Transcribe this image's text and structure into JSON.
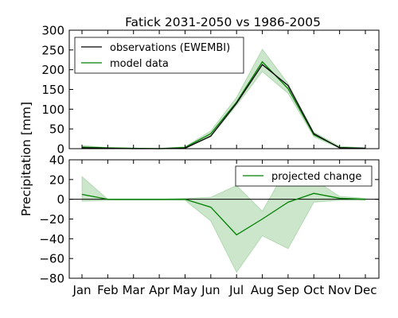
{
  "chart_data": [
    {
      "type": "line",
      "title": "Fatick 2031-2050 vs 1986-2005",
      "categories": [
        "Jan",
        "Feb",
        "Mar",
        "Apr",
        "May",
        "Jun",
        "Jul",
        "Aug",
        "Sep",
        "Oct",
        "Nov",
        "Dec"
      ],
      "ylim": [
        0,
        300
      ],
      "yticks": [
        0,
        50,
        100,
        150,
        200,
        250,
        300
      ],
      "legend_position": "top-left",
      "series": [
        {
          "name": "observations (EWEMBI)",
          "color": "#000000",
          "values": [
            2,
            1,
            0,
            0,
            1,
            32,
            115,
            213,
            160,
            38,
            2,
            1
          ]
        },
        {
          "name": "model data",
          "color": "#008000",
          "values": [
            4,
            2,
            1,
            0,
            3,
            38,
            118,
            220,
            152,
            35,
            3,
            1
          ],
          "band_low": [
            1,
            1,
            0,
            0,
            1,
            30,
            110,
            195,
            140,
            30,
            1,
            0
          ],
          "band_high": [
            8,
            3,
            1,
            1,
            5,
            45,
            130,
            252,
            165,
            42,
            6,
            2
          ]
        }
      ]
    },
    {
      "type": "line",
      "categories": [
        "Jan",
        "Feb",
        "Mar",
        "Apr",
        "May",
        "Jun",
        "Jul",
        "Aug",
        "Sep",
        "Oct",
        "Nov",
        "Dec"
      ],
      "ylim": [
        -80,
        40
      ],
      "yticks": [
        -80,
        -60,
        -40,
        -20,
        0,
        20,
        40
      ],
      "ylabel_shared": "Precipitation [mm]",
      "legend_position": "top-right",
      "zero_line": true,
      "series": [
        {
          "name": "projected change",
          "color": "#008000",
          "values": [
            5,
            0,
            0,
            0,
            0,
            -8,
            -36,
            -20,
            -3,
            6,
            1,
            0
          ],
          "band_low": [
            -2,
            -1,
            -1,
            -1,
            -1,
            -22,
            -74,
            -37,
            -50,
            -3,
            -1,
            -1
          ],
          "band_high": [
            23,
            0,
            0,
            0,
            1,
            2,
            14,
            -12,
            34,
            20,
            3,
            1
          ]
        }
      ]
    }
  ],
  "title_display": "Fatick 2031-2050 vs 1986-2005",
  "ylabel_display": "Precipitation [mm]",
  "legend_top": {
    "obs": "observations (EWEMBI)",
    "model": "model data"
  },
  "legend_bottom": {
    "change": "projected change"
  }
}
